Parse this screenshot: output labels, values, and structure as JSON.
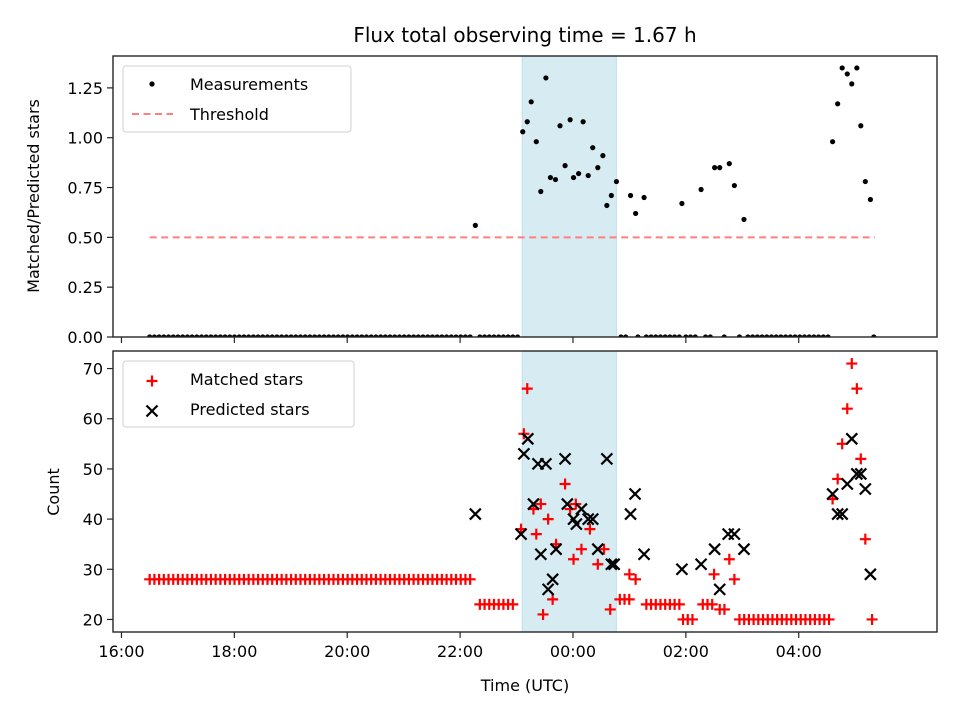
{
  "chart_data": [
    {
      "type": "scatter",
      "panel": "top",
      "title": "Flux total observing time = 1.67 h",
      "xlabel": "",
      "ylabel": "Matched/Predicted stars",
      "x_unit": "hours since 00:00 of first day (24+ = next day), UTC",
      "xlim": [
        15.85,
        30.45
      ],
      "ylim": [
        0.0,
        1.41
      ],
      "yticks": [
        0.0,
        0.25,
        0.5,
        0.75,
        1.0,
        1.25
      ],
      "ytick_labels": [
        "0.00",
        "0.25",
        "0.50",
        "0.75",
        "1.00",
        "1.25"
      ],
      "xticks": [
        16,
        18,
        20,
        22,
        24,
        26,
        28
      ],
      "xtick_labels": [
        "",
        "",
        "",
        "",
        "",
        "",
        ""
      ],
      "grid": false,
      "legend": {
        "position": "top-left",
        "entries": [
          "Measurements",
          "Threshold"
        ]
      },
      "shaded_region": {
        "x": [
          23.1,
          24.77
        ],
        "color": "#add8e6"
      },
      "threshold": {
        "name": "Threshold",
        "value": 0.5,
        "x": [
          16.5,
          29.35
        ],
        "color": "#ff7f7f",
        "style": "dashed"
      },
      "series": [
        {
          "name": "Measurements",
          "color": "#000000",
          "marker": "dot",
          "zero_ranges": [
            [
              16.5,
              22.2
            ],
            [
              22.35,
              23.08
            ],
            [
              24.85,
              25.0
            ],
            [
              25.15,
              25.22
            ],
            [
              25.3,
              25.9
            ],
            [
              26.0,
              26.2
            ],
            [
              26.35,
              26.45
            ],
            [
              26.68,
              26.72
            ],
            [
              26.95,
              27.0
            ],
            [
              27.1,
              28.55
            ],
            [
              29.33,
              29.35
            ]
          ],
          "zero_step": 0.0835,
          "points": [
            [
              22.27,
              0.56
            ],
            [
              23.11,
              1.03
            ],
            [
              23.19,
              1.08
            ],
            [
              23.26,
              1.18
            ],
            [
              23.35,
              0.98
            ],
            [
              23.43,
              0.73
            ],
            [
              23.52,
              1.3
            ],
            [
              23.6,
              0.8
            ],
            [
              23.69,
              0.79
            ],
            [
              23.77,
              1.06
            ],
            [
              23.86,
              0.86
            ],
            [
              23.95,
              1.09
            ],
            [
              24.01,
              0.8
            ],
            [
              24.1,
              0.82
            ],
            [
              24.18,
              1.08
            ],
            [
              24.27,
              0.81
            ],
            [
              24.35,
              0.95
            ],
            [
              24.44,
              0.85
            ],
            [
              24.53,
              0.91
            ],
            [
              24.6,
              0.66
            ],
            [
              24.68,
              0.71
            ],
            [
              24.77,
              0.78
            ],
            [
              25.02,
              0.71
            ],
            [
              25.11,
              0.62
            ],
            [
              25.26,
              0.7
            ],
            [
              25.93,
              0.67
            ],
            [
              26.27,
              0.74
            ],
            [
              26.51,
              0.85
            ],
            [
              26.6,
              0.85
            ],
            [
              26.77,
              0.87
            ],
            [
              26.86,
              0.76
            ],
            [
              27.03,
              0.59
            ],
            [
              28.6,
              0.98
            ],
            [
              28.69,
              1.17
            ],
            [
              28.77,
              1.35
            ],
            [
              28.86,
              1.32
            ],
            [
              28.94,
              1.27
            ],
            [
              29.03,
              1.35
            ],
            [
              29.1,
              1.06
            ],
            [
              29.18,
              0.78
            ],
            [
              29.27,
              0.69
            ]
          ]
        }
      ]
    },
    {
      "type": "scatter",
      "panel": "bottom",
      "title": "",
      "xlabel": "Time (UTC)",
      "ylabel": "Count",
      "xlim": [
        15.85,
        30.45
      ],
      "ylim": [
        17.5,
        73.5
      ],
      "yticks": [
        20,
        30,
        40,
        50,
        60,
        70
      ],
      "ytick_labels": [
        "20",
        "30",
        "40",
        "50",
        "60",
        "70"
      ],
      "xticks": [
        16,
        18,
        20,
        22,
        24,
        26,
        28
      ],
      "xtick_labels": [
        "16:00",
        "18:00",
        "20:00",
        "22:00",
        "00:00",
        "02:00",
        "04:00"
      ],
      "grid": false,
      "legend": {
        "position": "top-left",
        "entries": [
          "Matched stars",
          "Predicted stars"
        ]
      },
      "shaded_region": {
        "x": [
          23.1,
          24.77
        ],
        "color": "#add8e6"
      },
      "series": [
        {
          "name": "Matched stars",
          "color": "#ff0000",
          "marker": "plus",
          "runs": [
            {
              "x": [
                16.5,
                22.2
              ],
              "value": 28
            },
            {
              "x": [
                22.35,
                23.0
              ],
              "value": 23
            },
            {
              "x": [
                24.83,
                25.0
              ],
              "value": 24
            },
            {
              "x": [
                25.3,
                25.9
              ],
              "value": 23
            },
            {
              "x": [
                25.95,
                26.2
              ],
              "value": 20
            },
            {
              "x": [
                26.3,
                26.5
              ],
              "value": 23
            },
            {
              "x": [
                26.6,
                26.75
              ],
              "value": 22
            },
            {
              "x": [
                26.95,
                28.55
              ],
              "value": 20
            },
            {
              "x": [
                29.3,
                29.38
              ],
              "value": 20
            }
          ],
          "run_step": 0.0835,
          "points": [
            [
              23.08,
              38
            ],
            [
              23.13,
              57
            ],
            [
              23.19,
              66
            ],
            [
              23.3,
              42
            ],
            [
              23.35,
              37
            ],
            [
              23.43,
              43
            ],
            [
              23.47,
              21
            ],
            [
              23.56,
              40
            ],
            [
              23.64,
              24
            ],
            [
              23.7,
              35
            ],
            [
              23.86,
              47
            ],
            [
              23.95,
              42
            ],
            [
              24.01,
              32
            ],
            [
              24.05,
              43
            ],
            [
              24.15,
              34
            ],
            [
              24.3,
              38
            ],
            [
              24.44,
              31
            ],
            [
              24.55,
              34
            ],
            [
              24.66,
              22
            ],
            [
              25.0,
              29
            ],
            [
              25.11,
              28
            ],
            [
              26.5,
              29
            ],
            [
              26.77,
              32
            ],
            [
              26.86,
              28
            ],
            [
              28.6,
              44
            ],
            [
              28.69,
              48
            ],
            [
              28.77,
              55
            ],
            [
              28.86,
              62
            ],
            [
              28.94,
              71
            ],
            [
              29.03,
              66
            ],
            [
              29.1,
              52
            ],
            [
              29.18,
              36
            ]
          ]
        },
        {
          "name": "Predicted stars",
          "color": "#000000",
          "marker": "x",
          "points": [
            [
              22.27,
              41
            ],
            [
              23.08,
              37
            ],
            [
              23.13,
              53
            ],
            [
              23.2,
              56
            ],
            [
              23.3,
              43
            ],
            [
              23.38,
              51
            ],
            [
              23.43,
              33
            ],
            [
              23.52,
              51
            ],
            [
              23.56,
              26
            ],
            [
              23.64,
              28
            ],
            [
              23.7,
              34
            ],
            [
              23.86,
              52
            ],
            [
              23.9,
              43
            ],
            [
              24.01,
              40
            ],
            [
              24.06,
              39
            ],
            [
              24.15,
              42
            ],
            [
              24.27,
              40
            ],
            [
              24.35,
              40
            ],
            [
              24.44,
              34
            ],
            [
              24.6,
              52
            ],
            [
              24.68,
              31
            ],
            [
              24.73,
              31
            ],
            [
              25.02,
              41
            ],
            [
              25.1,
              45
            ],
            [
              25.26,
              33
            ],
            [
              25.93,
              30
            ],
            [
              26.27,
              31
            ],
            [
              26.51,
              34
            ],
            [
              26.6,
              26
            ],
            [
              26.75,
              37
            ],
            [
              26.86,
              37
            ],
            [
              27.03,
              34
            ],
            [
              28.6,
              45
            ],
            [
              28.69,
              41
            ],
            [
              28.77,
              41
            ],
            [
              28.86,
              47
            ],
            [
              28.94,
              56
            ],
            [
              29.03,
              49
            ],
            [
              29.1,
              49
            ],
            [
              29.18,
              46
            ],
            [
              29.27,
              29
            ]
          ]
        }
      ]
    }
  ]
}
